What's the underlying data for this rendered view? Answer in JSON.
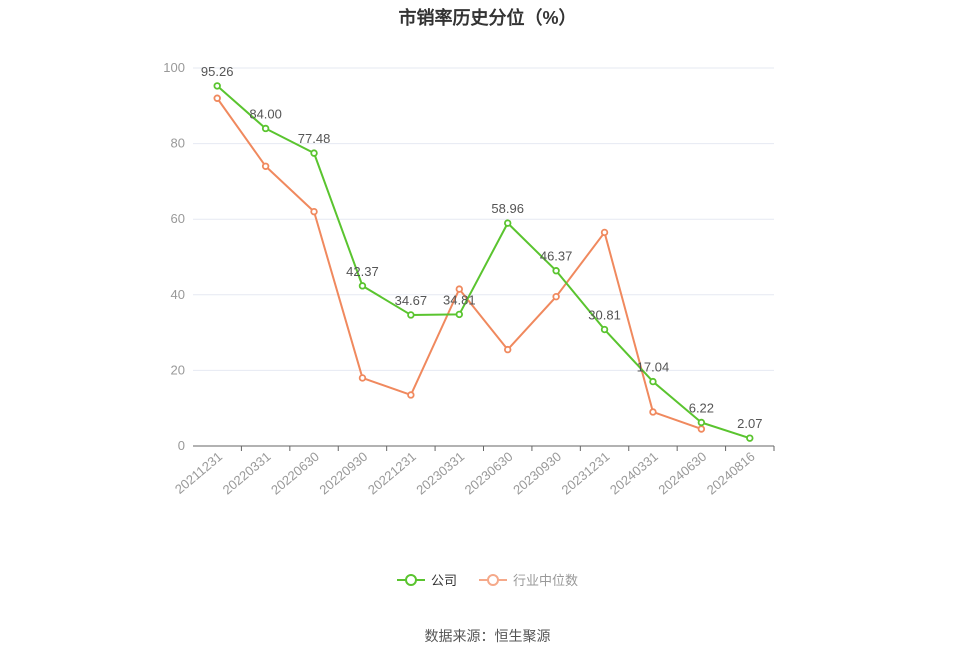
{
  "title": "市销率历史分位（%）",
  "source": "数据来源：恒生聚源",
  "colors": {
    "company": "#5ac42f",
    "industry": "#f0895e",
    "grid": "#e6e9f2",
    "axis": "#999999",
    "label": "#555555"
  },
  "legend": [
    {
      "name": "公司",
      "color": "#5ac42f"
    },
    {
      "name": "行业中位数",
      "color": "#f5a98a"
    }
  ],
  "chart_data": {
    "type": "line",
    "title": "市销率历史分位（%）",
    "xlabel": "",
    "ylabel": "",
    "ylim": [
      0,
      100
    ],
    "yticks": [
      0,
      20,
      40,
      60,
      80,
      100
    ],
    "grid": true,
    "legend_position": "bottom",
    "categories": [
      "20211231",
      "20220331",
      "20220630",
      "20220930",
      "20221231",
      "20230331",
      "20230630",
      "20230930",
      "20231231",
      "20240331",
      "20240630",
      "20240816"
    ],
    "series": [
      {
        "name": "公司",
        "color": "#5ac42f",
        "show_labels": true,
        "values": [
          95.26,
          84.0,
          77.48,
          42.37,
          34.67,
          34.81,
          58.96,
          46.37,
          30.81,
          17.04,
          6.22,
          2.07
        ],
        "labels": [
          "95.26",
          "84.00",
          "77.48",
          "42.37",
          "34.67",
          "34.81",
          "58.96",
          "46.37",
          "30.81",
          "17.04",
          "6.22",
          "2.07"
        ]
      },
      {
        "name": "行业中位数",
        "color": "#f0895e",
        "show_labels": false,
        "values": [
          92,
          74,
          62,
          18,
          13.5,
          41.5,
          25.5,
          39.5,
          56.5,
          9,
          4.5,
          null
        ]
      }
    ]
  }
}
